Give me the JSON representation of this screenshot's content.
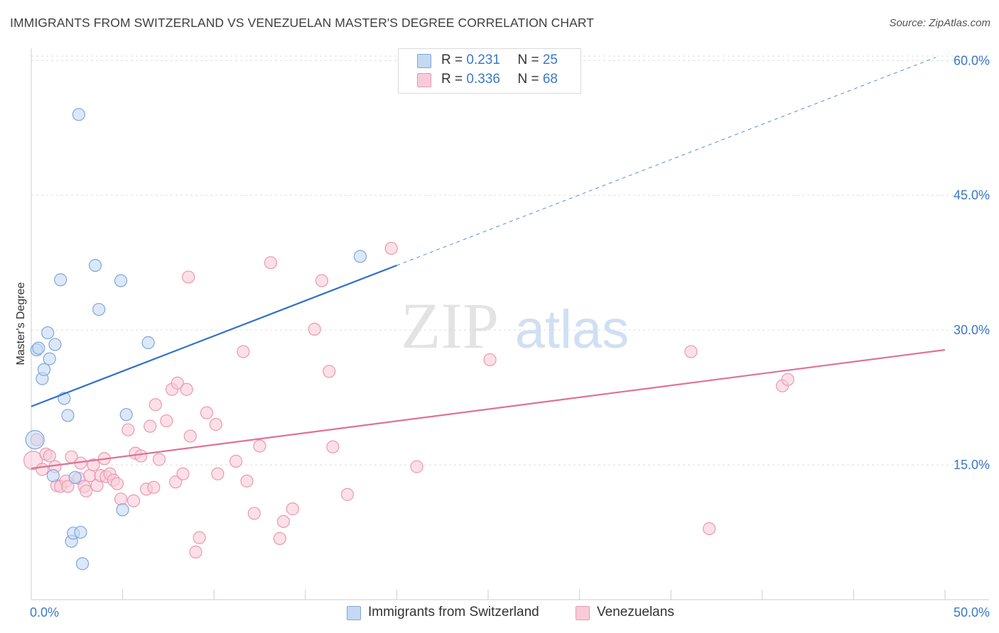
{
  "title": "IMMIGRANTS FROM SWITZERLAND VS VENEZUELAN MASTER'S DEGREE CORRELATION CHART",
  "source": "Source: ZipAtlas.com",
  "watermark": {
    "zip": "ZIP",
    "atlas": "atlas"
  },
  "legend": {
    "rows": [
      {
        "r_label": "R = ",
        "r_value": "0.231",
        "n_label": "N = ",
        "n_value": "25"
      },
      {
        "r_label": "R = ",
        "r_value": "0.336",
        "n_label": "N = ",
        "n_value": "68"
      }
    ]
  },
  "bottom_legend": [
    "Immigrants from Switzerland",
    "Venezuelans"
  ],
  "colors": {
    "blue_fill": "#c5d9f3",
    "blue_stroke": "#7ea6dc",
    "blue_line": "#2f6fcb",
    "pink_fill": "#f9cbd8",
    "pink_stroke": "#ec98b0",
    "pink_line": "#e07098",
    "axis_text": "#3a78c8",
    "grid": "#dddddd"
  },
  "chart_data": {
    "type": "scatter",
    "title": "IMMIGRANTS FROM SWITZERLAND VS VENEZUELAN MASTER'S DEGREE CORRELATION CHART",
    "xlabel": "",
    "ylabel": "Master's Degree",
    "xlim": [
      0,
      50
    ],
    "ylim": [
      0,
      62
    ],
    "x_tick_labels": {
      "min": "0.0%",
      "max": "50.0%"
    },
    "y_ticks": [
      {
        "value": 15,
        "label": "15.0%"
      },
      {
        "value": 30,
        "label": "30.0%"
      },
      {
        "value": 45,
        "label": "45.0%"
      },
      {
        "value": 60,
        "label": "60.0%"
      }
    ],
    "series": [
      {
        "name": "Immigrants from Switzerland",
        "color": "blue",
        "trend": {
          "x0": 0,
          "y0": 21.5,
          "x1": 20,
          "y1": 37.2,
          "dash_to_x": 49.5
        },
        "points": [
          {
            "x": 0.2,
            "y": 17.8,
            "big": true
          },
          {
            "x": 0.3,
            "y": 27.8
          },
          {
            "x": 0.4,
            "y": 28.0
          },
          {
            "x": 0.6,
            "y": 24.6
          },
          {
            "x": 0.7,
            "y": 25.6
          },
          {
            "x": 0.9,
            "y": 29.7
          },
          {
            "x": 1.0,
            "y": 26.8
          },
          {
            "x": 1.2,
            "y": 13.8
          },
          {
            "x": 1.3,
            "y": 28.4
          },
          {
            "x": 1.6,
            "y": 35.6
          },
          {
            "x": 1.8,
            "y": 22.4
          },
          {
            "x": 2.0,
            "y": 20.5
          },
          {
            "x": 2.2,
            "y": 6.5
          },
          {
            "x": 2.3,
            "y": 7.4
          },
          {
            "x": 2.4,
            "y": 13.6
          },
          {
            "x": 2.6,
            "y": 54.0
          },
          {
            "x": 2.7,
            "y": 7.5
          },
          {
            "x": 2.8,
            "y": 4.0
          },
          {
            "x": 3.5,
            "y": 37.2
          },
          {
            "x": 3.7,
            "y": 32.3
          },
          {
            "x": 4.9,
            "y": 35.5
          },
          {
            "x": 5.0,
            "y": 10.0
          },
          {
            "x": 5.2,
            "y": 20.6
          },
          {
            "x": 6.4,
            "y": 28.6
          },
          {
            "x": 18.0,
            "y": 38.2
          }
        ]
      },
      {
        "name": "Venezuelans",
        "color": "pink",
        "trend": {
          "x0": 0,
          "y0": 14.6,
          "x1": 50,
          "y1": 27.8
        },
        "points": [
          {
            "x": 0.1,
            "y": 15.5,
            "big": true
          },
          {
            "x": 0.3,
            "y": 17.8
          },
          {
            "x": 0.6,
            "y": 14.5
          },
          {
            "x": 0.8,
            "y": 16.2
          },
          {
            "x": 1.0,
            "y": 16.0
          },
          {
            "x": 1.3,
            "y": 14.8
          },
          {
            "x": 1.4,
            "y": 12.7
          },
          {
            "x": 1.6,
            "y": 12.6
          },
          {
            "x": 1.9,
            "y": 13.2
          },
          {
            "x": 2.0,
            "y": 12.6
          },
          {
            "x": 2.2,
            "y": 15.9
          },
          {
            "x": 2.6,
            "y": 13.5
          },
          {
            "x": 2.7,
            "y": 15.2
          },
          {
            "x": 2.9,
            "y": 12.6
          },
          {
            "x": 3.0,
            "y": 12.1
          },
          {
            "x": 3.2,
            "y": 13.8
          },
          {
            "x": 3.4,
            "y": 15.0
          },
          {
            "x": 3.6,
            "y": 12.7
          },
          {
            "x": 3.8,
            "y": 13.8
          },
          {
            "x": 4.0,
            "y": 15.7
          },
          {
            "x": 4.1,
            "y": 13.7
          },
          {
            "x": 4.3,
            "y": 14.0
          },
          {
            "x": 4.5,
            "y": 13.3
          },
          {
            "x": 4.7,
            "y": 12.9
          },
          {
            "x": 4.9,
            "y": 11.2
          },
          {
            "x": 5.3,
            "y": 18.9
          },
          {
            "x": 5.6,
            "y": 11.0
          },
          {
            "x": 5.7,
            "y": 16.3
          },
          {
            "x": 6.0,
            "y": 16.0
          },
          {
            "x": 6.3,
            "y": 12.3
          },
          {
            "x": 6.5,
            "y": 19.3
          },
          {
            "x": 6.7,
            "y": 12.5
          },
          {
            "x": 6.8,
            "y": 21.7
          },
          {
            "x": 7.0,
            "y": 15.6
          },
          {
            "x": 7.4,
            "y": 19.9
          },
          {
            "x": 7.7,
            "y": 23.4
          },
          {
            "x": 7.9,
            "y": 13.1
          },
          {
            "x": 8.0,
            "y": 24.1
          },
          {
            "x": 8.3,
            "y": 14.0
          },
          {
            "x": 8.5,
            "y": 23.4
          },
          {
            "x": 8.6,
            "y": 35.9
          },
          {
            "x": 8.7,
            "y": 18.2
          },
          {
            "x": 9.0,
            "y": 5.3
          },
          {
            "x": 9.2,
            "y": 6.9
          },
          {
            "x": 9.6,
            "y": 20.8
          },
          {
            "x": 10.1,
            "y": 19.5
          },
          {
            "x": 10.2,
            "y": 14.0
          },
          {
            "x": 11.2,
            "y": 15.4
          },
          {
            "x": 11.6,
            "y": 27.6
          },
          {
            "x": 11.8,
            "y": 13.2
          },
          {
            "x": 12.2,
            "y": 9.6
          },
          {
            "x": 12.5,
            "y": 17.1
          },
          {
            "x": 13.1,
            "y": 37.5
          },
          {
            "x": 13.6,
            "y": 6.8
          },
          {
            "x": 13.8,
            "y": 8.7
          },
          {
            "x": 14.3,
            "y": 10.1
          },
          {
            "x": 15.5,
            "y": 30.1
          },
          {
            "x": 15.9,
            "y": 35.5
          },
          {
            "x": 16.3,
            "y": 25.4
          },
          {
            "x": 16.5,
            "y": 17.0
          },
          {
            "x": 17.3,
            "y": 11.7
          },
          {
            "x": 19.7,
            "y": 39.1
          },
          {
            "x": 21.1,
            "y": 14.8
          },
          {
            "x": 25.1,
            "y": 26.7
          },
          {
            "x": 36.1,
            "y": 27.6
          },
          {
            "x": 37.1,
            "y": 7.9
          },
          {
            "x": 41.1,
            "y": 23.8
          },
          {
            "x": 41.4,
            "y": 24.5
          }
        ]
      }
    ]
  }
}
